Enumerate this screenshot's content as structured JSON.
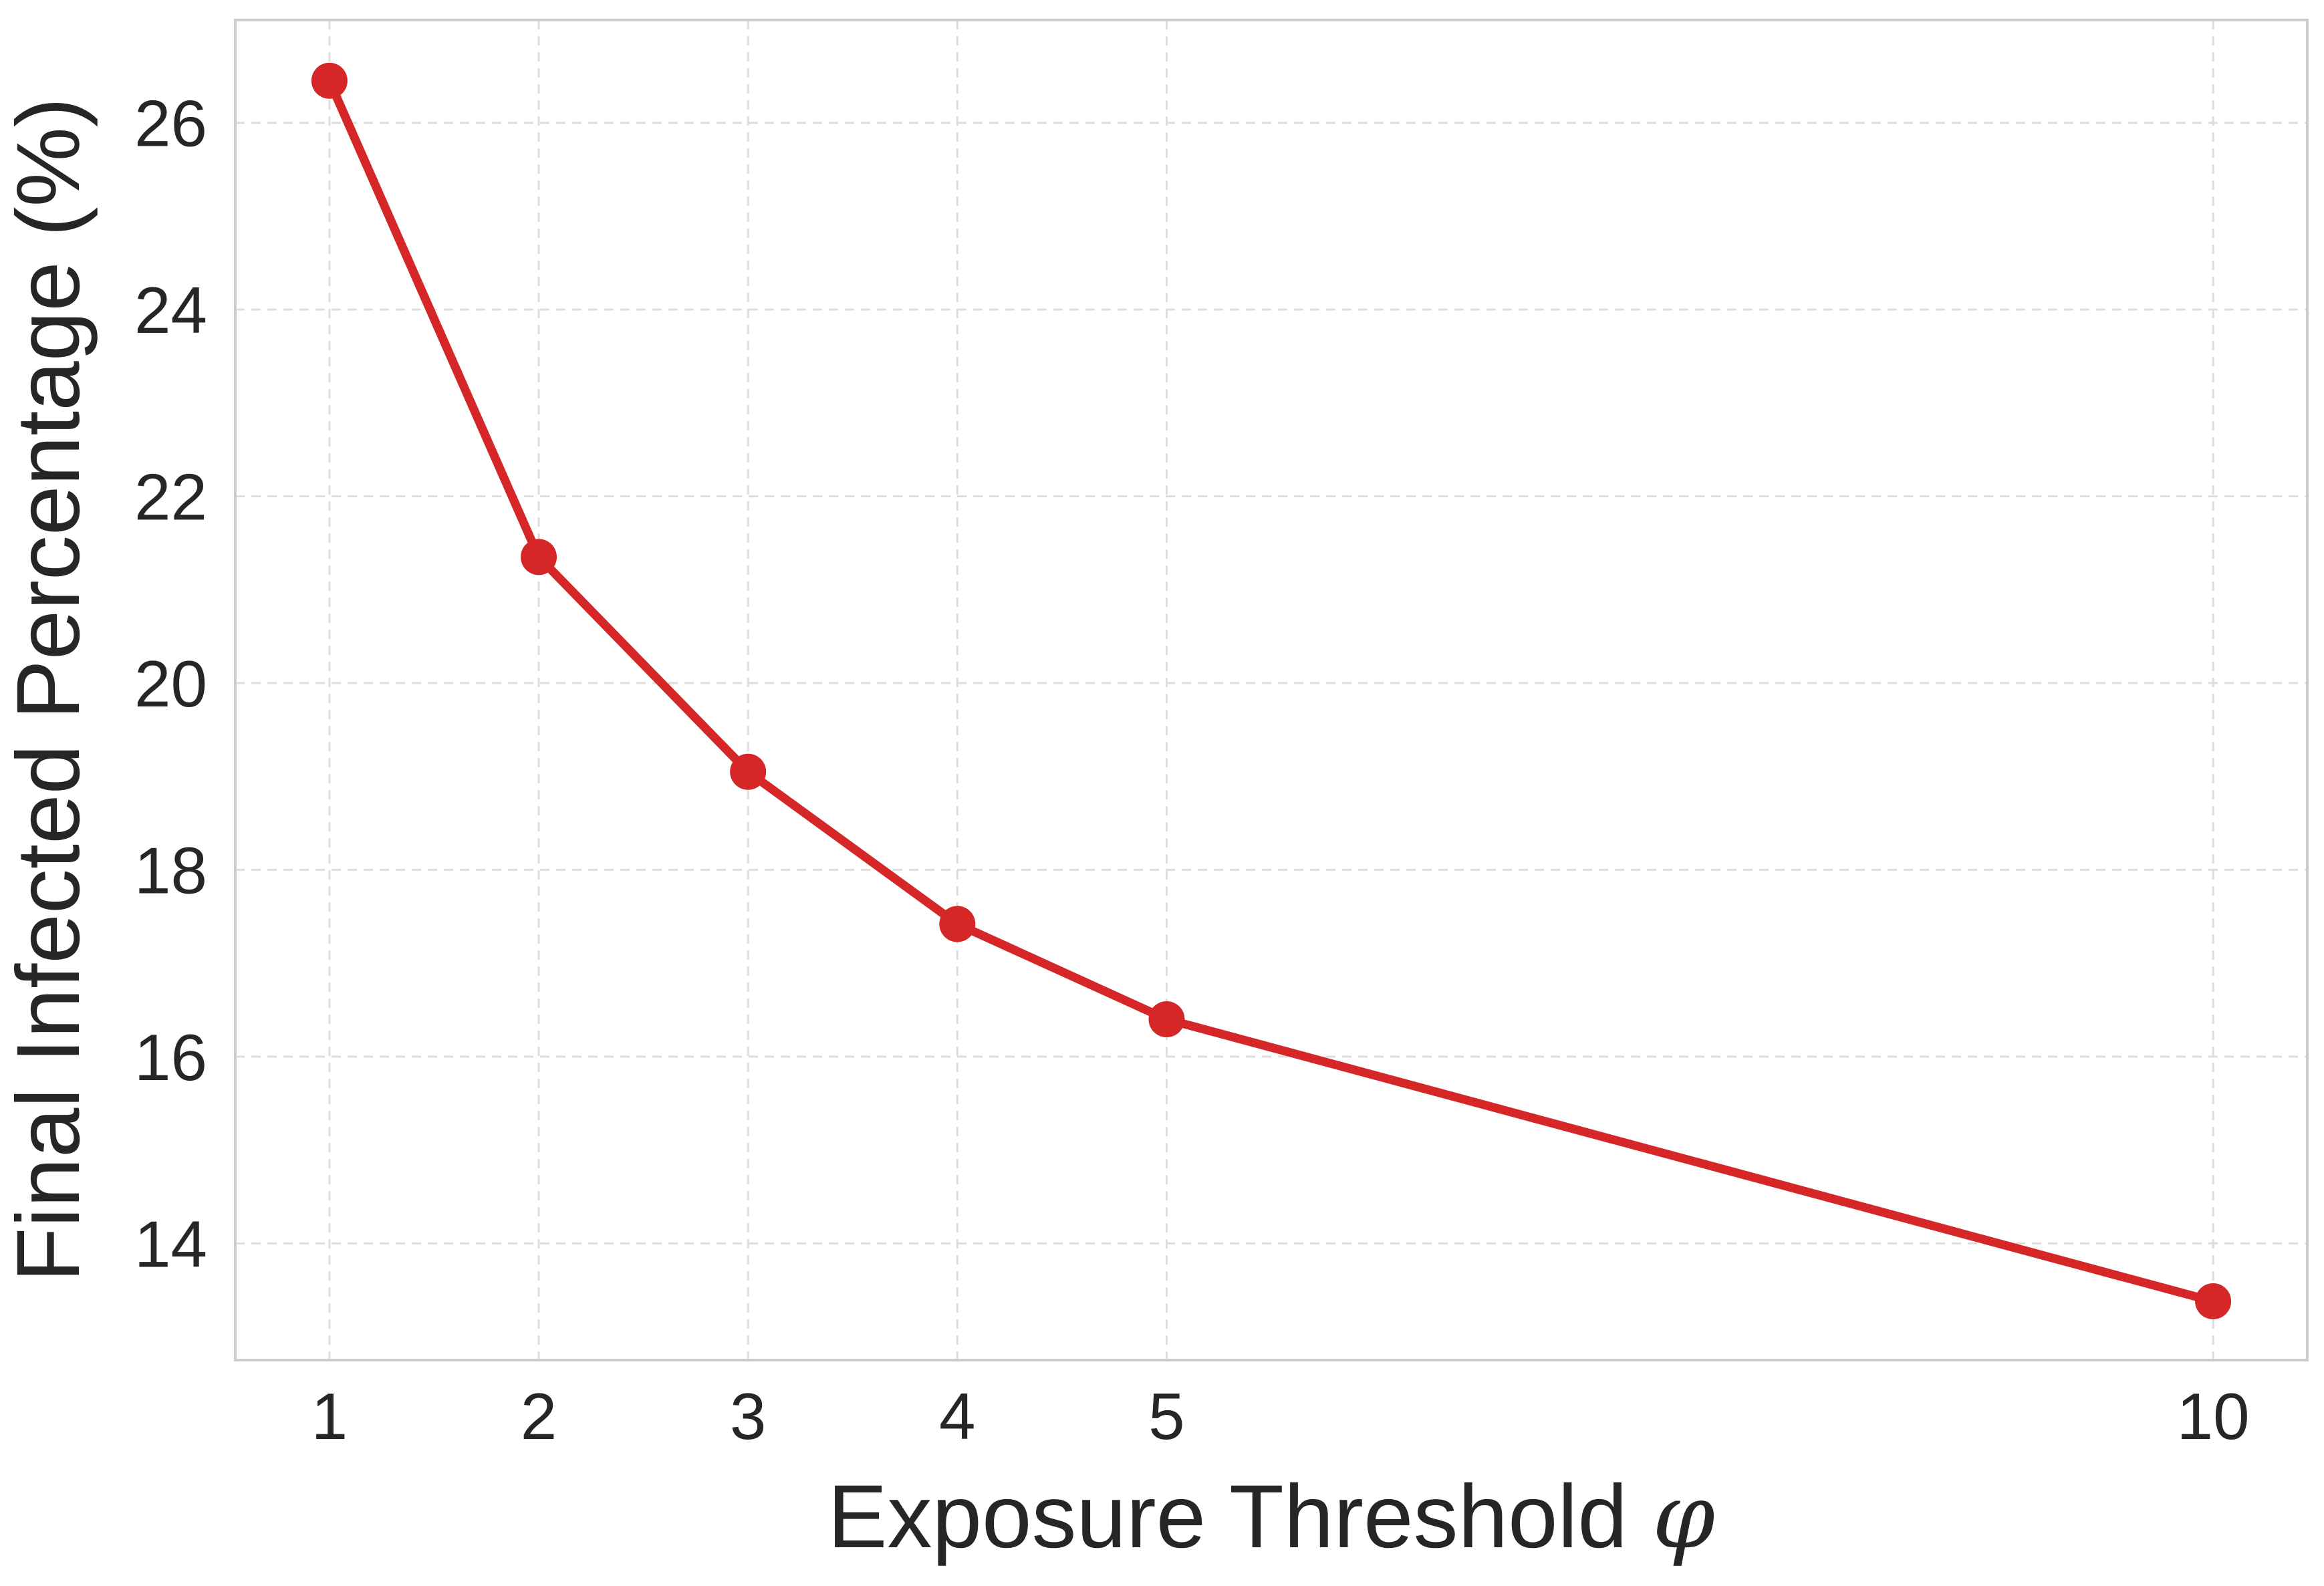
{
  "chart_data": {
    "type": "line",
    "title": "",
    "xlabel_text": "Exposure Threshold ",
    "xlabel_symbol": "φ",
    "ylabel": "Final Infected Percentage (%)",
    "x": [
      1,
      2,
      3,
      4,
      5,
      10
    ],
    "series": [
      {
        "values": [
          26.45,
          21.35,
          19.05,
          17.42,
          16.4,
          13.38
        ],
        "color": "#d62728"
      }
    ],
    "xticks": [
      1,
      2,
      3,
      4,
      5,
      10
    ],
    "yticks": [
      14,
      16,
      18,
      20,
      22,
      24,
      26
    ],
    "xlim": [
      0.55,
      10.45
    ],
    "ylim": [
      12.75,
      27.1
    ],
    "grid": true,
    "legend": "none"
  }
}
